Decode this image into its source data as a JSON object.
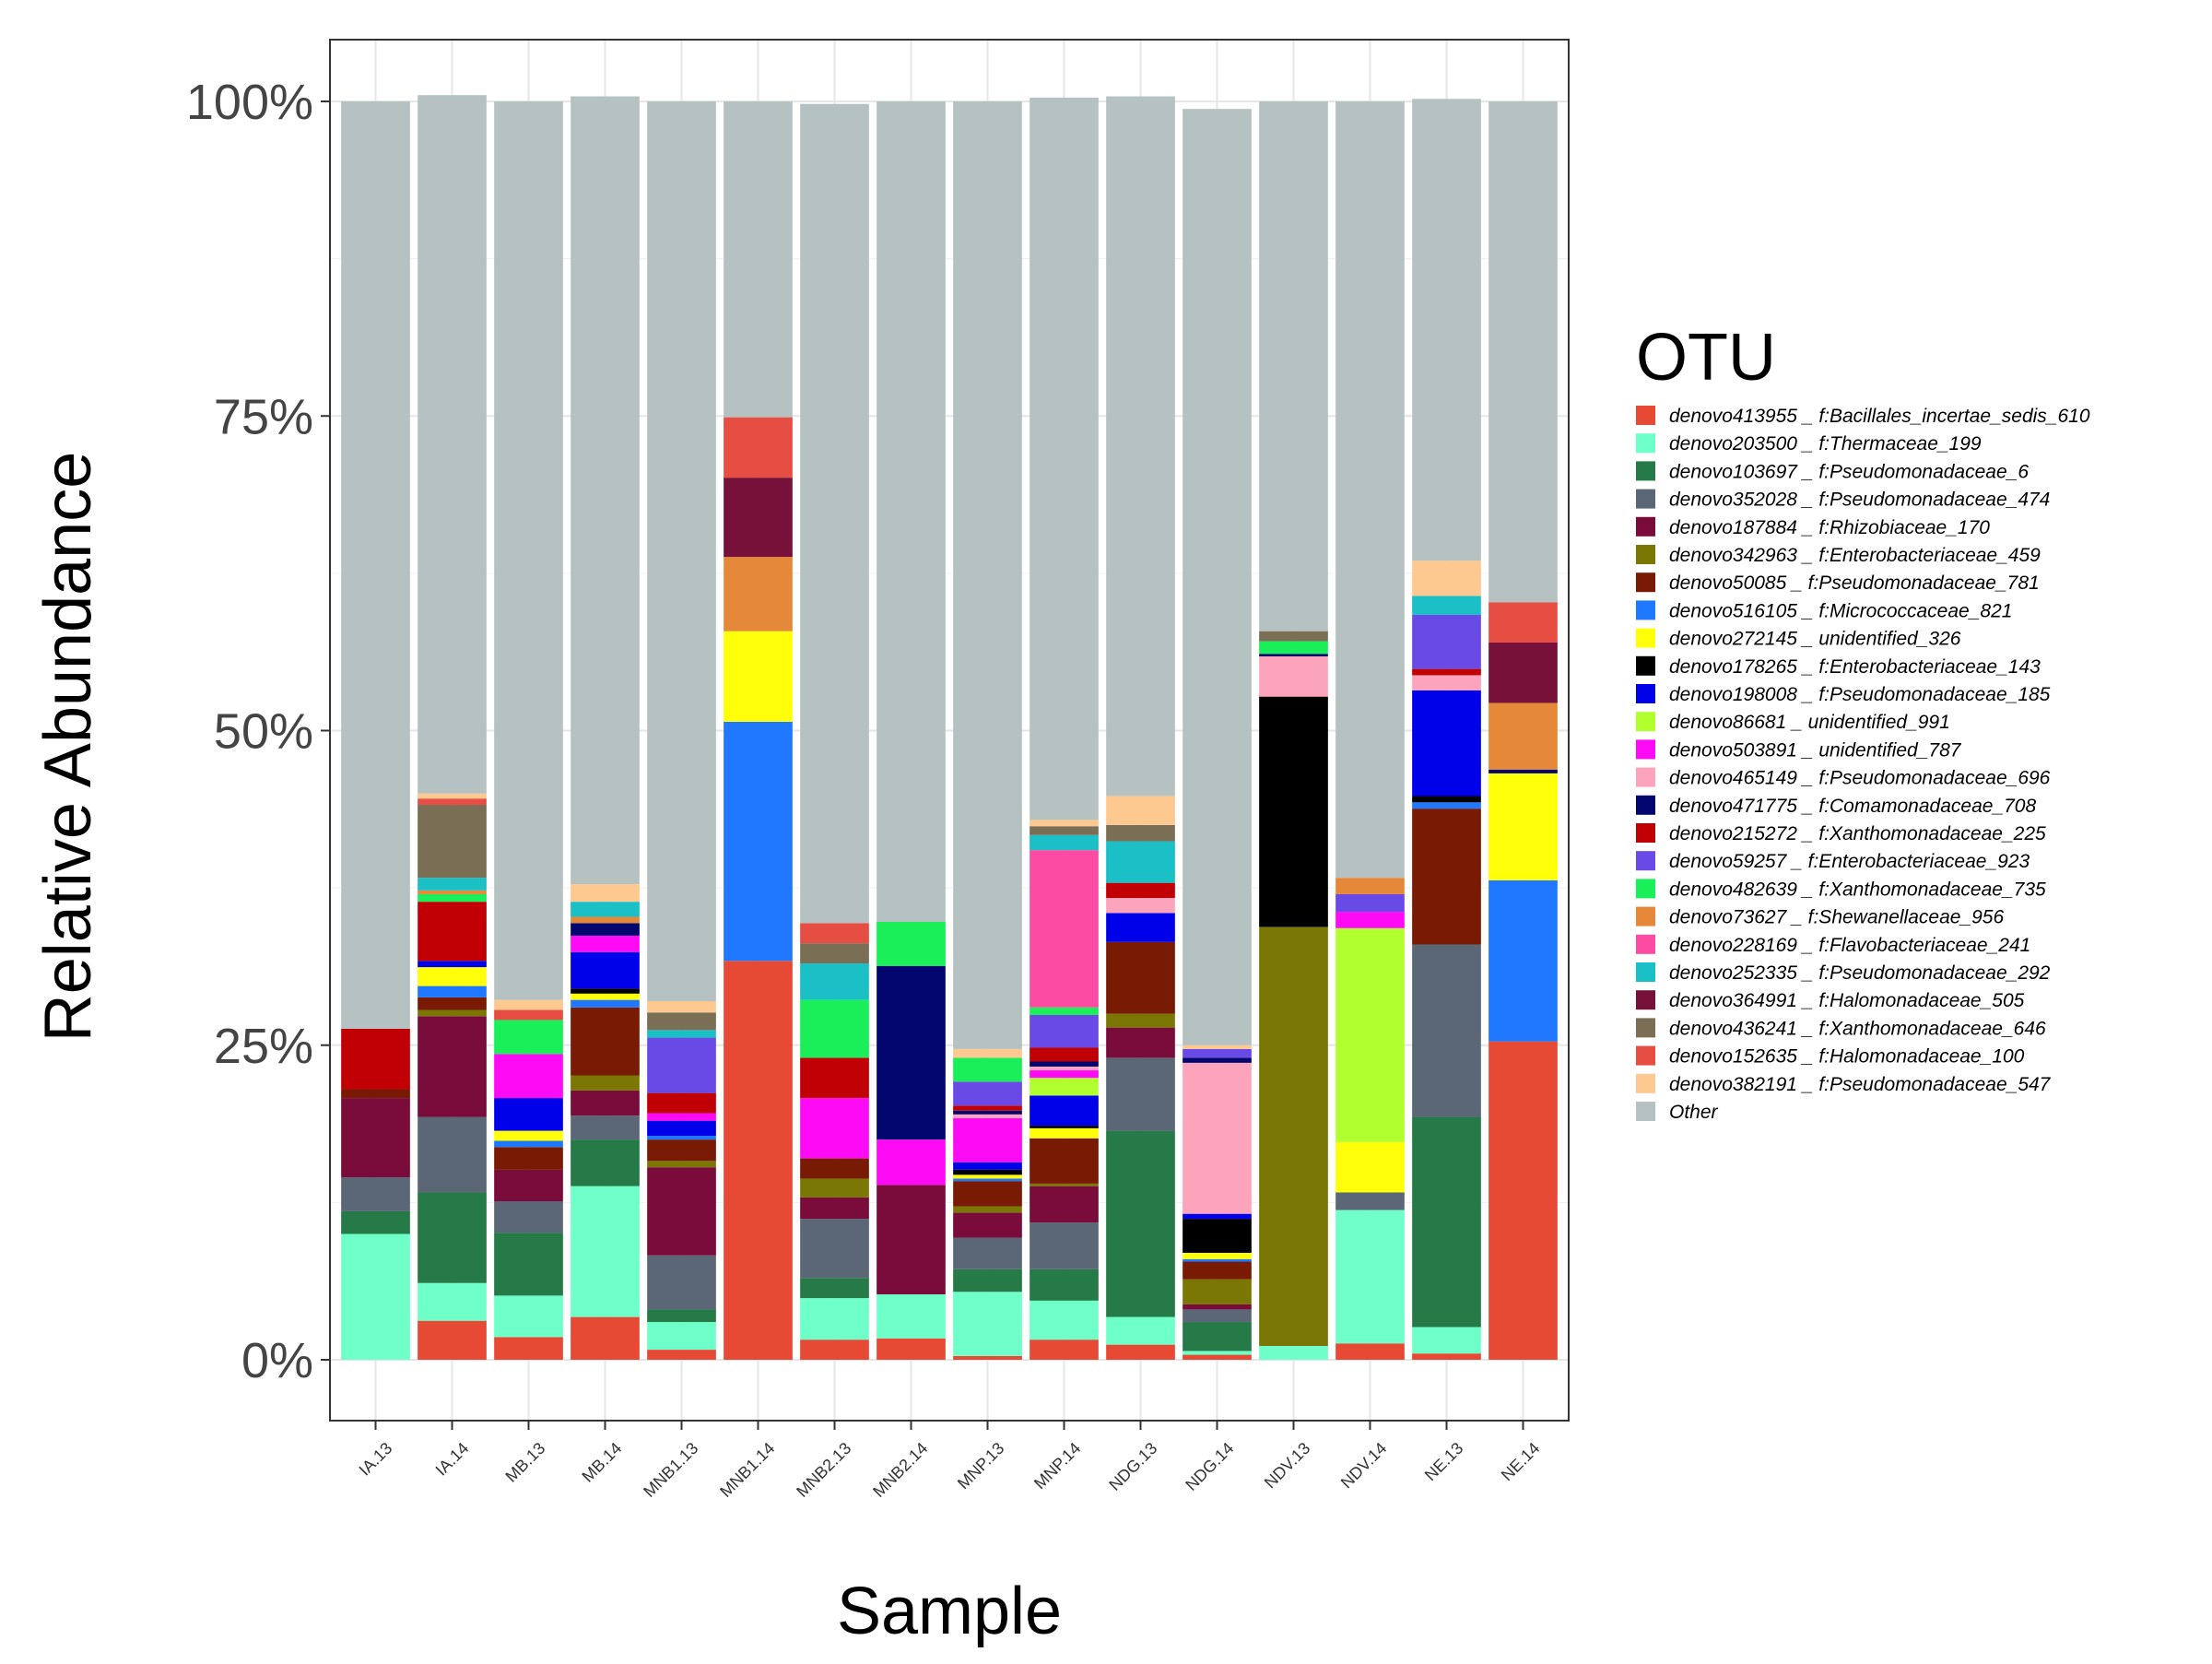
{
  "chart_data": {
    "type": "bar",
    "stacked": true,
    "title": "",
    "xlabel": "Sample",
    "ylabel": "Relative Abundance",
    "ylim": [
      0,
      1
    ],
    "y_ticks": [
      0,
      0.25,
      0.5,
      0.75,
      1
    ],
    "y_tick_labels": [
      "0%",
      "25%",
      "50%",
      "75%",
      "100%"
    ],
    "grid": true,
    "legend_title": "OTU",
    "legend_position": "right",
    "categories": [
      "IA.13",
      "IA.14",
      "MB.13",
      "MB.14",
      "MNB1.13",
      "MNB1.14",
      "MNB2.13",
      "MNB2.14",
      "MNP.13",
      "MNP.14",
      "NDG.13",
      "NDG.14",
      "NDV.13",
      "NDV.14",
      "NE.13",
      "NE.14"
    ],
    "series": [
      {
        "name": "denovo413955 _ f:Bacillales_incertae_sedis_610",
        "color": "#E64A35",
        "values": [
          0,
          0.031,
          0.018,
          0.034,
          0.008,
          0.317,
          0.016,
          0.017,
          0.003,
          0.016,
          0.012,
          0.004,
          0,
          0.013,
          0.005,
          0.253
        ]
      },
      {
        "name": "denovo203500 _ f:Thermaceae_199",
        "color": "#6FFFC9",
        "values": [
          0.1,
          0.03,
          0.033,
          0.104,
          0.022,
          0,
          0.033,
          0.035,
          0.051,
          0.031,
          0.022,
          0.003,
          0.011,
          0.106,
          0.021,
          0
        ]
      },
      {
        "name": "denovo103697 _ f:Pseudomonadaceae_6",
        "color": "#257A47",
        "values": [
          0.018,
          0.072,
          0.05,
          0.037,
          0.01,
          0,
          0.016,
          0,
          0.018,
          0.025,
          0.148,
          0.023,
          0,
          0,
          0.167,
          0
        ]
      },
      {
        "name": "denovo352028 _ f:Pseudomonadaceae_474",
        "color": "#5B6677",
        "values": [
          0.027,
          0.06,
          0.025,
          0.019,
          0.043,
          0,
          0.047,
          0,
          0.025,
          0.037,
          0.058,
          0.01,
          0,
          0.014,
          0.137,
          0
        ]
      },
      {
        "name": "denovo187884 _ f:Rhizobiaceae_170",
        "color": "#7A0C3C",
        "values": [
          0.063,
          0.08,
          0.025,
          0.02,
          0.07,
          0,
          0.017,
          0.087,
          0.02,
          0.029,
          0.024,
          0.004,
          0,
          0,
          0,
          0
        ]
      },
      {
        "name": "denovo342963 _ f:Enterobacteriaceae_459",
        "color": "#7A7705",
        "values": [
          0,
          0.005,
          0,
          0.012,
          0.005,
          0,
          0.015,
          0,
          0.005,
          0.002,
          0.011,
          0.02,
          0.333,
          0,
          0,
          0
        ]
      },
      {
        "name": "denovo50085 _ f:Pseudomonadaceae_781",
        "color": "#791A04",
        "values": [
          0.007,
          0.01,
          0.018,
          0.054,
          0.017,
          0,
          0.016,
          0,
          0.02,
          0.036,
          0.057,
          0.014,
          0,
          0,
          0.108,
          0
        ]
      },
      {
        "name": "denovo516105 _ f:Micrococcaceae_821",
        "color": "#1F78FF",
        "values": [
          0,
          0.009,
          0.005,
          0.006,
          0.003,
          0.19,
          0,
          0,
          0.002,
          0,
          0,
          0.002,
          0,
          0,
          0.005,
          0.128
        ]
      },
      {
        "name": "denovo272145 _ unidentified_326",
        "color": "#FFFF0A",
        "values": [
          0,
          0.015,
          0.008,
          0.005,
          0,
          0.072,
          0,
          0,
          0.003,
          0.008,
          0,
          0.005,
          0,
          0.04,
          0,
          0.085
        ]
      },
      {
        "name": "denovo178265 _ f:Enterobacteriaceae_143",
        "color": "#000000",
        "values": [
          0,
          0,
          0,
          0.004,
          0,
          0,
          0,
          0,
          0.004,
          0.002,
          0,
          0.027,
          0.183,
          0,
          0.005,
          0
        ]
      },
      {
        "name": "denovo198008 _ f:Pseudomonadaceae_185",
        "color": "#0000E9",
        "values": [
          0,
          0.005,
          0.026,
          0.029,
          0.012,
          0,
          0,
          0,
          0.006,
          0.024,
          0.023,
          0.004,
          0,
          0,
          0.084,
          0
        ]
      },
      {
        "name": "denovo86681 _ unidentified_991",
        "color": "#B1FF2E",
        "values": [
          0,
          0,
          0,
          0,
          0,
          0,
          0,
          0,
          0,
          0.014,
          0,
          0,
          0,
          0.17,
          0,
          0
        ]
      },
      {
        "name": "denovo503891 _ unidentified_787",
        "color": "#FF0AF5",
        "values": [
          0,
          0,
          0.035,
          0.013,
          0.006,
          0,
          0.048,
          0.036,
          0.035,
          0.006,
          0,
          0,
          0,
          0.013,
          0,
          0
        ]
      },
      {
        "name": "denovo465149 _ f:Pseudomonadaceae_696",
        "color": "#FBA4BB",
        "values": [
          0,
          0,
          0,
          0,
          0,
          0,
          0,
          0,
          0.003,
          0.003,
          0.012,
          0.12,
          0.032,
          0,
          0.012,
          0
        ]
      },
      {
        "name": "denovo471775 _ f:Comamonadaceae_708",
        "color": "#02066E",
        "values": [
          0,
          0,
          0,
          0.01,
          0,
          0,
          0,
          0.138,
          0.003,
          0.004,
          0,
          0.004,
          0.002,
          0,
          0,
          0.003
        ]
      },
      {
        "name": "denovo215272 _ f:Xanthomonadaceae_225",
        "color": "#C10005",
        "values": [
          0.048,
          0.047,
          0,
          0,
          0.016,
          0,
          0.032,
          0,
          0.004,
          0.011,
          0.012,
          0,
          0,
          0,
          0.005,
          0
        ]
      },
      {
        "name": "denovo59257 _ f:Enterobacteriaceae_923",
        "color": "#6A4AE6",
        "values": [
          0,
          0,
          0,
          0,
          0.044,
          0,
          0,
          0,
          0.019,
          0.026,
          0,
          0.007,
          0,
          0.014,
          0.043,
          0
        ]
      },
      {
        "name": "denovo482639 _ f:Xanthomonadaceae_735",
        "color": "#1AEF5A",
        "values": [
          0,
          0.006,
          0.027,
          0,
          0,
          0,
          0.046,
          0.035,
          0.019,
          0.006,
          0,
          0,
          0.01,
          0,
          0,
          0
        ]
      },
      {
        "name": "denovo73627 _ f:Shewanellaceae_956",
        "color": "#E6883A",
        "values": [
          0,
          0.003,
          0,
          0.005,
          0,
          0.059,
          0,
          0,
          0,
          0,
          0,
          0,
          0,
          0.013,
          0,
          0.053
        ]
      },
      {
        "name": "denovo228169 _ f:Flavobacteriaceae_241",
        "color": "#FB4BA2",
        "values": [
          0,
          0,
          0,
          0,
          0,
          0,
          0,
          0,
          0,
          0.125,
          0,
          0,
          0,
          0,
          0,
          0
        ]
      },
      {
        "name": "denovo252335 _ f:Pseudomonadaceae_292",
        "color": "#1BBFC6",
        "values": [
          0,
          0.01,
          0,
          0.012,
          0.006,
          0,
          0.029,
          0,
          0,
          0.012,
          0.033,
          0,
          0,
          0,
          0.015,
          0
        ]
      },
      {
        "name": "denovo364991 _ f:Halomonadaceae_505",
        "color": "#78113A",
        "values": [
          0,
          0,
          0,
          0,
          0,
          0.063,
          0,
          0,
          0,
          0,
          0,
          0,
          0,
          0,
          0,
          0.048
        ]
      },
      {
        "name": "denovo436241 _ f:Xanthomonadaceae_646",
        "color": "#7A6E55",
        "values": [
          0,
          0.058,
          0,
          0,
          0.014,
          0,
          0.016,
          0,
          0,
          0.007,
          0.013,
          0,
          0.008,
          0,
          0,
          0
        ]
      },
      {
        "name": "denovo152635 _ f:Halomonadaceae_100",
        "color": "#E64E44",
        "values": [
          0,
          0.005,
          0.008,
          0,
          0,
          0.048,
          0.016,
          0,
          0,
          0,
          0,
          0,
          0,
          0,
          0,
          0.032
        ]
      },
      {
        "name": "denovo382191 _ f:Pseudomonadaceae_547",
        "color": "#FEC891",
        "values": [
          0,
          0.004,
          0.008,
          0.014,
          0.009,
          0,
          0,
          0,
          0.007,
          0.005,
          0.023,
          0.003,
          0,
          0,
          0.028,
          0
        ]
      },
      {
        "name": "Other",
        "color": "#B5C2C1",
        "values": [
          0.737,
          0.555,
          0.714,
          0.626,
          0.715,
          0.251,
          0.651,
          0.652,
          0.753,
          0.574,
          0.556,
          0.744,
          0.421,
          0.617,
          0.367,
          0.398
        ]
      }
    ]
  }
}
